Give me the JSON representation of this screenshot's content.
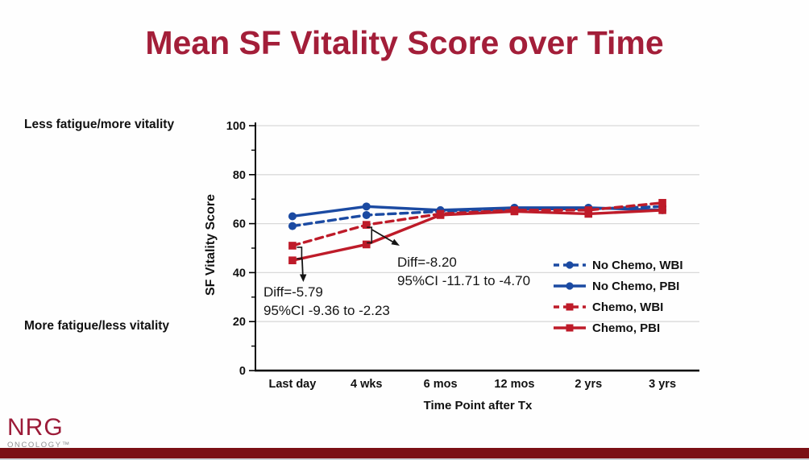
{
  "title": {
    "text": "Mean SF Vitality Score over Time"
  },
  "left_labels": {
    "top": "Less fatigue/more vitality",
    "bottom": "More fatigue/less vitality"
  },
  "annotations": {
    "diff_4wks": {
      "line1": "Diff=-8.20",
      "line2": "95%CI -11.71 to -4.70"
    },
    "diff_lastday": {
      "line1": "Diff=-5.79",
      "line2": "95%CI -9.36 to -2.23"
    }
  },
  "footer": {
    "logo_text": "NRG",
    "logo_subtext": "ONCOLOGY™"
  },
  "colors": {
    "title": "#A31E39",
    "blue": "#1B4AA2",
    "red": "#BE1B29",
    "grid": "#D9D9D9",
    "axis": "#000000",
    "footer_bar": "#7B1015",
    "logo": "#9C1B38"
  },
  "chart_data": {
    "type": "line",
    "title": "Mean SF Vitality Score over Time",
    "xlabel": "Time Point after Tx",
    "ylabel": "SF Vitality Score",
    "ylim": [
      0,
      100
    ],
    "ytick_interval": 20,
    "grid": true,
    "legend_position": "inside-right",
    "categories": [
      "Last day",
      "4 wks",
      "6 mos",
      "12 mos",
      "2 yrs",
      "3 yrs"
    ],
    "series": [
      {
        "name": "No Chemo, WBI",
        "color": "#1B4AA2",
        "style": "dashed",
        "marker": "circle",
        "values": [
          59,
          63.5,
          65,
          66,
          66,
          67
        ]
      },
      {
        "name": "No Chemo, PBI",
        "color": "#1B4AA2",
        "style": "solid",
        "marker": "circle",
        "values": [
          63,
          67,
          65.5,
          66.5,
          66.5,
          65.5
        ]
      },
      {
        "name": "Chemo, WBI",
        "color": "#BE1B29",
        "style": "dashed",
        "marker": "square",
        "values": [
          51,
          59.5,
          64,
          65.5,
          65.5,
          68.5
        ]
      },
      {
        "name": "Chemo, PBI",
        "color": "#BE1B29",
        "style": "solid",
        "marker": "square",
        "values": [
          45,
          51.5,
          63.5,
          65,
          64,
          65.5
        ]
      }
    ]
  }
}
